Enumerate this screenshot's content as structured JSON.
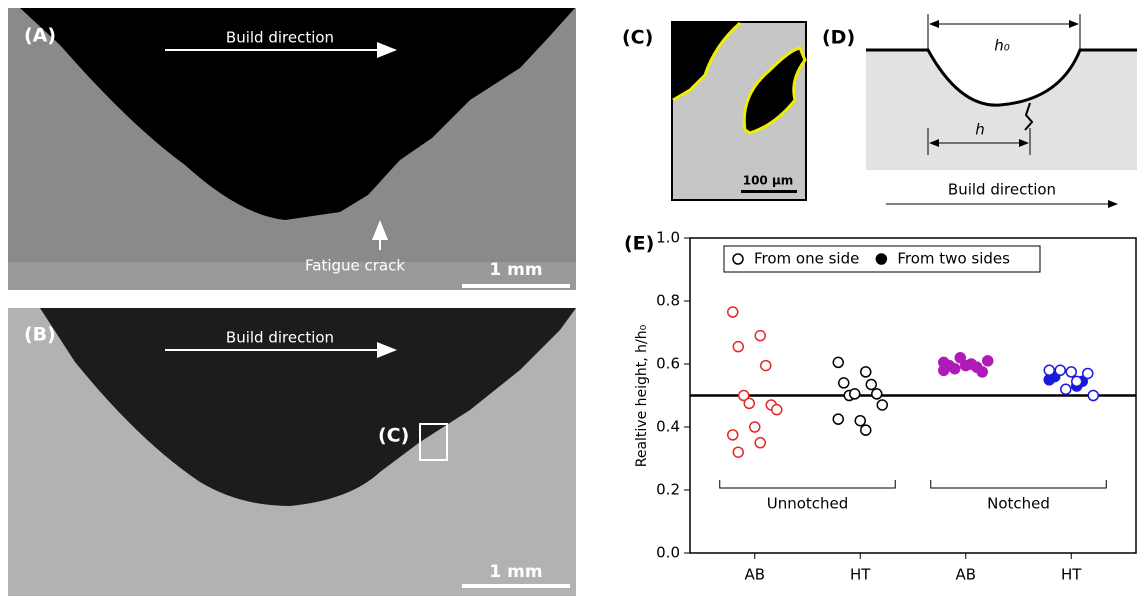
{
  "panels": {
    "A": {
      "label": "(A)",
      "build_direction": "Build direction",
      "annotation": "Fatigue crack",
      "scale_bar": "1 mm"
    },
    "B": {
      "label": "(B)",
      "build_direction": "Build direction",
      "inset_label": "(C)",
      "scale_bar": "1 mm"
    },
    "C": {
      "label": "(C)",
      "scale_bar": "100 µm"
    },
    "D": {
      "label": "(D)",
      "top_width": "h₀",
      "bottom_width": "h",
      "build_direction": "Build direction"
    }
  },
  "chart_data": {
    "type": "strip",
    "panel_label": "(E)",
    "y_label": "Realtive height, h/h₀",
    "categories": [
      "AB",
      "HT",
      "AB",
      "HT"
    ],
    "groups": [
      "Unnotched",
      "Notched"
    ],
    "ylim": [
      0,
      1
    ],
    "yticks": [
      {
        "value": 0,
        "label": "0.0"
      },
      0.2,
      0.4,
      0.6,
      0.8,
      {
        "value": 1,
        "label": "1.0"
      }
    ],
    "reference_line": 0.5,
    "legend_position": "top-left",
    "legend": [
      {
        "label": "From one side",
        "filled": false
      },
      {
        "label": "From two sides",
        "filled": true
      }
    ],
    "series": [
      {
        "color": "#e8262a",
        "values": [
          0.765,
          0.69,
          0.655,
          0.595,
          0.5,
          0.47,
          0.475,
          0.455,
          0.4,
          0.375,
          0.35,
          0.32
        ],
        "filled": [
          false,
          false,
          false,
          false,
          false,
          false,
          false,
          false,
          false,
          false,
          false,
          false
        ]
      },
      {
        "color": "#000000",
        "values": [
          0.605,
          0.575,
          0.54,
          0.535,
          0.5,
          0.505,
          0.505,
          0.47,
          0.42,
          0.425,
          0.39
        ],
        "filled": [
          false,
          false,
          false,
          false,
          false,
          false,
          false,
          false,
          false,
          false,
          false
        ]
      },
      {
        "color": "#b01ab8",
        "values": [
          0.605,
          0.6,
          0.595,
          0.59,
          0.585,
          0.575,
          0.62,
          0.61,
          0.595,
          0.58
        ],
        "filled": [
          true,
          true,
          true,
          true,
          true,
          true,
          true,
          true,
          true,
          true
        ]
      },
      {
        "color": "#1a1adc",
        "values": [
          0.55,
          0.53,
          0.56,
          0.545,
          0.58,
          0.57,
          0.52,
          0.5,
          0.575,
          0.58,
          0.545
        ],
        "filled": [
          true,
          true,
          true,
          true,
          false,
          false,
          false,
          false,
          false,
          false,
          false
        ]
      }
    ]
  }
}
